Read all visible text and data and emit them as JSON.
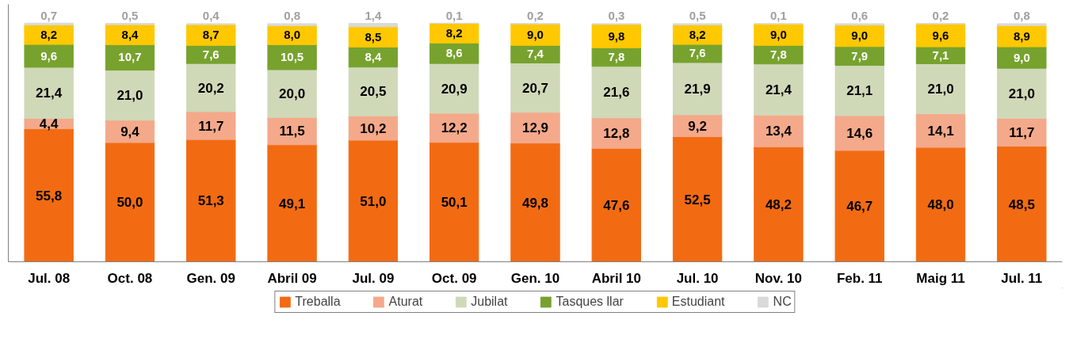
{
  "chart_data": {
    "type": "bar",
    "stacked": true,
    "categories": [
      "Jul. 08",
      "Oct. 08",
      "Gen. 09",
      "Abril 09",
      "Jul. 09",
      "Oct. 09",
      "Gen. 10",
      "Abril 10",
      "Jul. 10",
      "Nov. 10",
      "Feb. 11",
      "Maig 11",
      "Jul. 11"
    ],
    "series": [
      {
        "name": "Treballa",
        "color": "#f26b13",
        "values": [
          55.8,
          50.0,
          51.3,
          49.1,
          51.0,
          50.1,
          49.8,
          47.6,
          52.5,
          48.2,
          46.7,
          48.0,
          48.5
        ],
        "value_labels": [
          "55,8",
          "50,0",
          "51,3",
          "49,1",
          "51,0",
          "50,1",
          "49,8",
          "47,6",
          "52,5",
          "48,2",
          "46,7",
          "48,0",
          "48,5"
        ]
      },
      {
        "name": "Aturat",
        "color": "#f4a98a",
        "values": [
          4.4,
          9.4,
          11.7,
          11.5,
          10.2,
          12.2,
          12.9,
          12.8,
          9.2,
          13.4,
          14.6,
          14.1,
          11.7
        ],
        "value_labels": [
          "4,4",
          "9,4",
          "11,7",
          "11,5",
          "10,2",
          "12,2",
          "12,9",
          "12,8",
          "9,2",
          "13,4",
          "14,6",
          "14,1",
          "11,7"
        ]
      },
      {
        "name": "Jubilat",
        "color": "#cfd9b8",
        "values": [
          21.4,
          21.0,
          20.2,
          20.0,
          20.5,
          20.9,
          20.7,
          21.6,
          21.9,
          21.4,
          21.1,
          21.0,
          21.0
        ],
        "value_labels": [
          "21,4",
          "21,0",
          "20,2",
          "20,0",
          "20,5",
          "20,9",
          "20,7",
          "21,6",
          "21,9",
          "21,4",
          "21,1",
          "21,0",
          "21,0"
        ]
      },
      {
        "name": "Tasques llar",
        "color": "#77a22e",
        "values": [
          9.6,
          10.7,
          7.6,
          10.5,
          8.4,
          8.6,
          7.4,
          7.8,
          7.6,
          7.8,
          7.9,
          7.1,
          9.0
        ],
        "value_labels": [
          "9,6",
          "10,7",
          "7,6",
          "10,5",
          "8,4",
          "8,6",
          "7,4",
          "7,8",
          "7,6",
          "7,8",
          "7,9",
          "7,1",
          "9,0"
        ]
      },
      {
        "name": "Estudiant",
        "color": "#ffc800",
        "values": [
          8.2,
          8.4,
          8.7,
          8.0,
          8.5,
          8.2,
          9.0,
          9.8,
          8.2,
          9.0,
          9.0,
          9.6,
          8.9
        ],
        "value_labels": [
          "8,2",
          "8,4",
          "8,7",
          "8,0",
          "8,5",
          "8,2",
          "9,0",
          "9,8",
          "8,2",
          "9,0",
          "9,0",
          "9,6",
          "8,9"
        ]
      },
      {
        "name": "NC",
        "color": "#d9d9d9",
        "values": [
          0.7,
          0.5,
          0.4,
          0.8,
          1.4,
          0.1,
          0.2,
          0.3,
          0.5,
          0.1,
          0.6,
          0.2,
          0.8
        ],
        "value_labels": [
          "0,7",
          "0,5",
          "0,4",
          "0,8",
          "1,4",
          "0,1",
          "0,2",
          "0,3",
          "0,5",
          "0,1",
          "0,6",
          "0,2",
          "0,8"
        ]
      }
    ],
    "ylim": [
      0,
      108
    ],
    "tick_labels": "x",
    "grid": false,
    "legend": "bottom"
  }
}
